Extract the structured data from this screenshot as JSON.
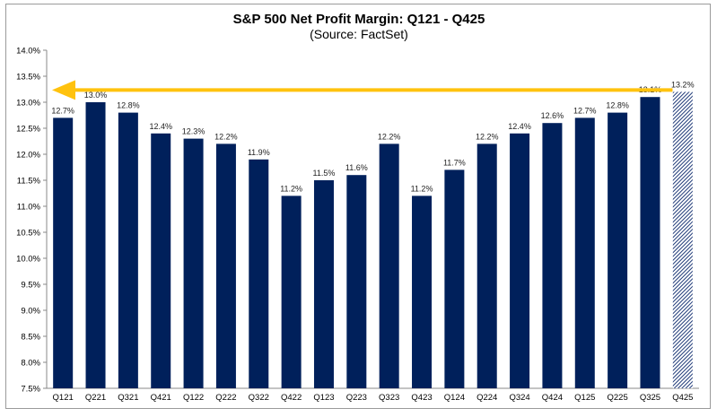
{
  "chart_data": {
    "type": "bar",
    "title": "S&P 500 Net Profit Margin: Q121 - Q425",
    "subtitle": "(Source: FactSet)",
    "xlabel": "",
    "ylabel": "",
    "ylim": [
      7.5,
      14.0
    ],
    "yticks": [
      "7.5%",
      "8.0%",
      "8.5%",
      "9.0%",
      "9.5%",
      "10.0%",
      "10.5%",
      "11.0%",
      "11.5%",
      "12.0%",
      "12.5%",
      "13.0%",
      "13.5%",
      "14.0%"
    ],
    "categories": [
      "Q121",
      "Q221",
      "Q321",
      "Q421",
      "Q122",
      "Q222",
      "Q322",
      "Q422",
      "Q123",
      "Q223",
      "Q323",
      "Q423",
      "Q124",
      "Q224",
      "Q324",
      "Q424",
      "Q125",
      "Q225",
      "Q325",
      "Q425"
    ],
    "values": [
      12.7,
      13.0,
      12.8,
      12.4,
      12.3,
      12.2,
      11.9,
      11.2,
      11.5,
      11.6,
      12.2,
      11.2,
      11.7,
      12.2,
      12.4,
      12.6,
      12.7,
      12.8,
      13.1,
      13.2
    ],
    "labels": [
      "12.7%",
      "13.0%",
      "12.8%",
      "12.4%",
      "12.3%",
      "12.2%",
      "11.9%",
      "11.2%",
      "11.5%",
      "11.6%",
      "12.2%",
      "11.2%",
      "11.7%",
      "12.2%",
      "12.4%",
      "12.6%",
      "12.7%",
      "12.8%",
      "13.1%",
      "13.2%"
    ],
    "estimate_index": 19,
    "annotation": {
      "type": "arrow",
      "y": 13.2,
      "direction": "left"
    },
    "colors": {
      "bar": "#00205B",
      "arrow": "#FFC20E",
      "estimate": "#1F3A78"
    },
    "grid": false
  }
}
